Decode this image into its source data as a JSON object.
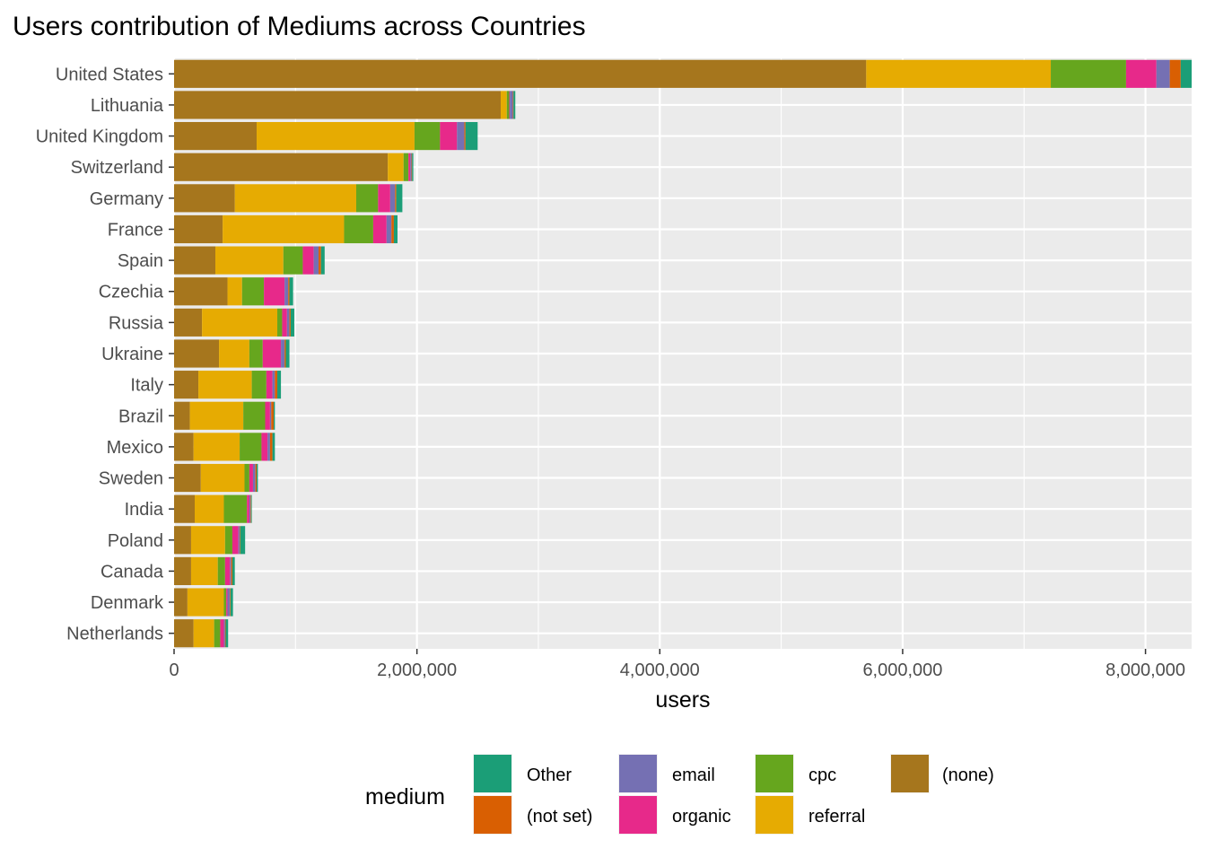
{
  "chart_data": {
    "type": "bar",
    "orientation": "horizontal",
    "stacked": true,
    "title": "Users contribution of Mediums across Countries",
    "xlabel": "users",
    "ylabel": "",
    "xlim": [
      0,
      8380000
    ],
    "x_ticks": [
      0,
      2000000,
      4000000,
      6000000,
      8000000
    ],
    "x_tick_labels": [
      "0",
      "2,000,000",
      "4,000,000",
      "6,000,000",
      "8,000,000"
    ],
    "grid": true,
    "legend": {
      "title": "medium",
      "position": "bottom",
      "entries": [
        {
          "name": "Other",
          "color": "#1B9E77"
        },
        {
          "name": "(not set)",
          "color": "#D95F02"
        },
        {
          "name": "email",
          "color": "#7570B3"
        },
        {
          "name": "organic",
          "color": "#E7298A"
        },
        {
          "name": "cpc",
          "color": "#66A61E"
        },
        {
          "name": "referral",
          "color": "#E6AB02"
        },
        {
          "name": "(none)",
          "color": "#A6761D"
        }
      ]
    },
    "categories": [
      "United States",
      "Lithuania",
      "United Kingdom",
      "Switzerland",
      "Germany",
      "France",
      "Spain",
      "Czechia",
      "Russia",
      "Ukraine",
      "Italy",
      "Brazil",
      "Mexico",
      "Sweden",
      "India",
      "Poland",
      "Canada",
      "Denmark",
      "Netherlands"
    ],
    "series": [
      {
        "name": "(none)",
        "color": "#A6761D",
        "values": [
          5700000,
          2690000,
          680000,
          1760000,
          500000,
          400000,
          340000,
          440000,
          230000,
          370000,
          200000,
          130000,
          160000,
          220000,
          170000,
          140000,
          140000,
          110000,
          160000
        ]
      },
      {
        "name": "referral",
        "color": "#E6AB02",
        "values": [
          1520000,
          50000,
          1300000,
          130000,
          1000000,
          1000000,
          560000,
          120000,
          620000,
          250000,
          440000,
          440000,
          380000,
          360000,
          240000,
          280000,
          220000,
          300000,
          170000
        ]
      },
      {
        "name": "cpc",
        "color": "#66A61E",
        "values": [
          620000,
          20000,
          210000,
          40000,
          180000,
          240000,
          160000,
          180000,
          40000,
          110000,
          120000,
          180000,
          180000,
          40000,
          190000,
          60000,
          60000,
          20000,
          50000
        ]
      },
      {
        "name": "organic",
        "color": "#E7298A",
        "values": [
          250000,
          5000,
          140000,
          15000,
          100000,
          110000,
          90000,
          170000,
          40000,
          150000,
          50000,
          40000,
          50000,
          30000,
          20000,
          50000,
          40000,
          10000,
          30000
        ]
      },
      {
        "name": "email",
        "color": "#7570B3",
        "values": [
          110000,
          25000,
          60000,
          10000,
          40000,
          40000,
          40000,
          30000,
          20000,
          30000,
          20000,
          10000,
          20000,
          20000,
          10000,
          10000,
          10000,
          20000,
          10000
        ]
      },
      {
        "name": "(not set)",
        "color": "#D95F02",
        "values": [
          90000,
          5000,
          10000,
          5000,
          10000,
          20000,
          20000,
          10000,
          10000,
          10000,
          20000,
          20000,
          20000,
          10000,
          5000,
          5000,
          10000,
          5000,
          5000
        ]
      },
      {
        "name": "Other",
        "color": "#1B9E77",
        "values": [
          90000,
          15000,
          100000,
          10000,
          50000,
          30000,
          30000,
          30000,
          30000,
          30000,
          30000,
          10000,
          20000,
          10000,
          5000,
          40000,
          20000,
          20000,
          20000
        ]
      }
    ]
  }
}
